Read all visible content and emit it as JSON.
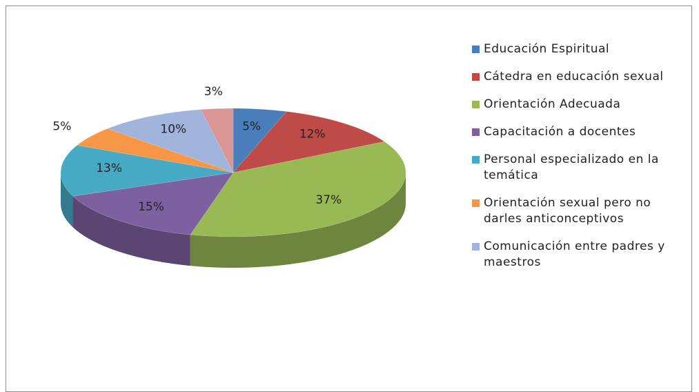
{
  "chart_data": {
    "type": "pie",
    "categories": [
      "Educación Espiritual",
      "Cátedra en educación sexual",
      "Orientación Adecuada",
      "Capacitación a docentes",
      "Personal especializado en la temática",
      "Orientación sexual pero no darles anticonceptivos",
      "Comunicación entre padres y maestros",
      null
    ],
    "values": [
      5,
      12,
      37,
      15,
      13,
      5,
      10,
      3
    ],
    "value_labels": [
      "5%",
      "12%",
      "37%",
      "15%",
      "13%",
      "5%",
      "10%",
      "3%"
    ],
    "colors": [
      "#4a7ebb",
      "#be4b48",
      "#98b954",
      "#7d60a0",
      "#46aac5",
      "#f79646",
      "#a0b4dc",
      "#d99694"
    ],
    "legend": "right"
  }
}
